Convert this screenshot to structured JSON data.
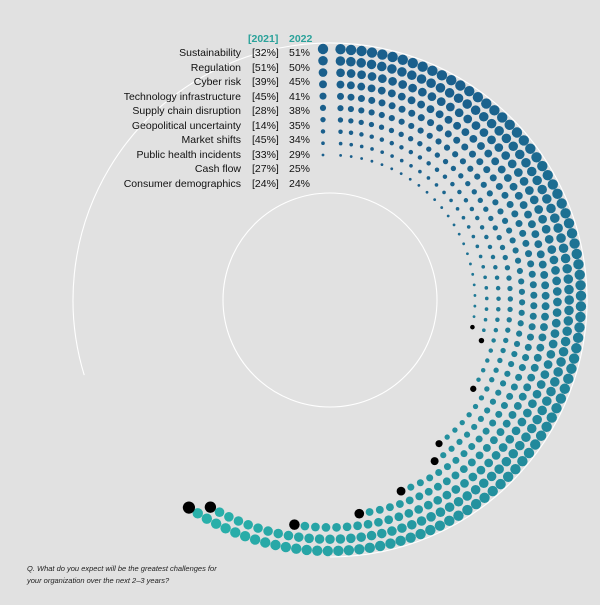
{
  "chart_data": {
    "type": "radial-dot-bar",
    "headers": {
      "prior": "[2021]",
      "current": "2022"
    },
    "series": [
      {
        "name": "Sustainability",
        "prior": "[32%]",
        "current": "51%",
        "value2022": 51
      },
      {
        "name": "Regulation",
        "prior": "[51%]",
        "current": "50%",
        "value2022": 50
      },
      {
        "name": "Cyber risk",
        "prior": "[39%]",
        "current": "45%",
        "value2022": 45
      },
      {
        "name": "Technology infrastructure",
        "prior": "[45%]",
        "current": "41%",
        "value2022": 41
      },
      {
        "name": "Supply chain disruption",
        "prior": "[28%]",
        "current": "38%",
        "value2022": 38
      },
      {
        "name": "Geopolitical uncertainty",
        "prior": "[14%]",
        "current": "35%",
        "value2022": 35
      },
      {
        "name": "Market shifts",
        "prior": "[45%]",
        "current": "34%",
        "value2022": 34
      },
      {
        "name": "Public health incidents",
        "prior": "[33%]",
        "current": "29%",
        "value2022": 29
      },
      {
        "name": "Cash flow",
        "prior": "[27%]",
        "current": "25%",
        "value2022": 25
      },
      {
        "name": "Consumer demographics",
        "prior": "[24%]",
        "current": "24%",
        "value2022": 24
      }
    ],
    "marker_legend": "black dot marks the end of each ring",
    "question": "Q. What do you expect will be the greatest challenges for your organization over the next 2–3 years?"
  },
  "colors": {
    "background": "#e1e1e1",
    "start": "#1a5f8c",
    "end": "#2ab3ab",
    "marker": "#000000",
    "guide": "#ffffff",
    "header": "#2aa29a"
  }
}
